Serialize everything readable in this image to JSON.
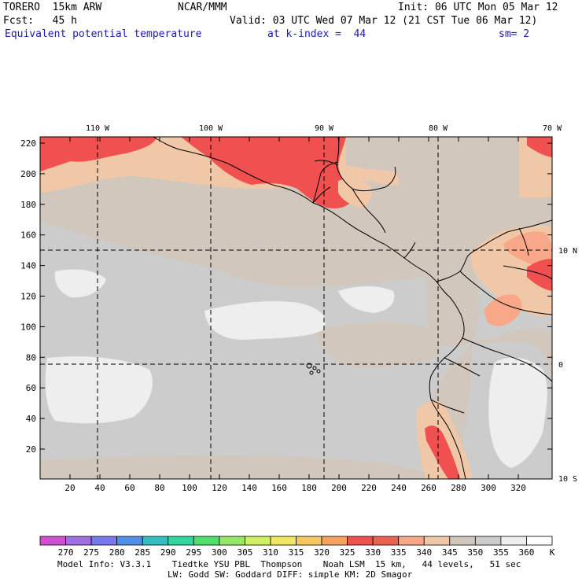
{
  "header": {
    "model": "TORERO  15km ARW",
    "org": "NCAR/MMM",
    "init": "Init: 06 UTC Mon 05 Mar 12",
    "fcst": "Fcst:   45 h",
    "valid": "Valid: 03 UTC Wed 07 Mar 12 (21 CST Tue 06 Mar 12)",
    "field": "Equivalent potential temperature",
    "level": "at k-index =  44",
    "smooth": "sm= 2"
  },
  "map": {
    "top_lon_labels": [
      "110 W",
      "100 W",
      "90 W",
      "80 W",
      "70 W"
    ],
    "right_lat_labels": [
      "10 N",
      "0",
      "10 S"
    ],
    "y_ticks": [
      "220",
      "200",
      "180",
      "160",
      "140",
      "120",
      "100",
      "80",
      "60",
      "40",
      "20"
    ],
    "x_ticks": [
      "20",
      "40",
      "60",
      "80",
      "100",
      "120",
      "140",
      "160",
      "180",
      "200",
      "220",
      "240",
      "260",
      "280",
      "300",
      "320"
    ]
  },
  "colorbar": {
    "labels": [
      "270",
      "275",
      "280",
      "285",
      "290",
      "295",
      "300",
      "305",
      "310",
      "315",
      "320",
      "325",
      "330",
      "335",
      "340",
      "345",
      "350",
      "355",
      "360"
    ],
    "unit": "K",
    "colors": [
      "#d050d0",
      "#a070e0",
      "#7878f0",
      "#5090e8",
      "#30c0c0",
      "#30d8a0",
      "#50e070",
      "#98e868",
      "#d0f060",
      "#f0e860",
      "#f8c860",
      "#f8a060",
      "#f05050",
      "#f06050",
      "#f8a888",
      "#f0c8a8",
      "#d2c7bc",
      "#cccccc",
      "#eeeeee",
      "#ffffff"
    ]
  },
  "footer": {
    "line1": "Model Info: V3.3.1    Tiedtke YSU PBL  Thompson    Noah LSM  15 km,   44 levels,   51 sec",
    "line2": "LW: Godd SW: Goddard DIFF: simple KM: 2D Smagor"
  }
}
